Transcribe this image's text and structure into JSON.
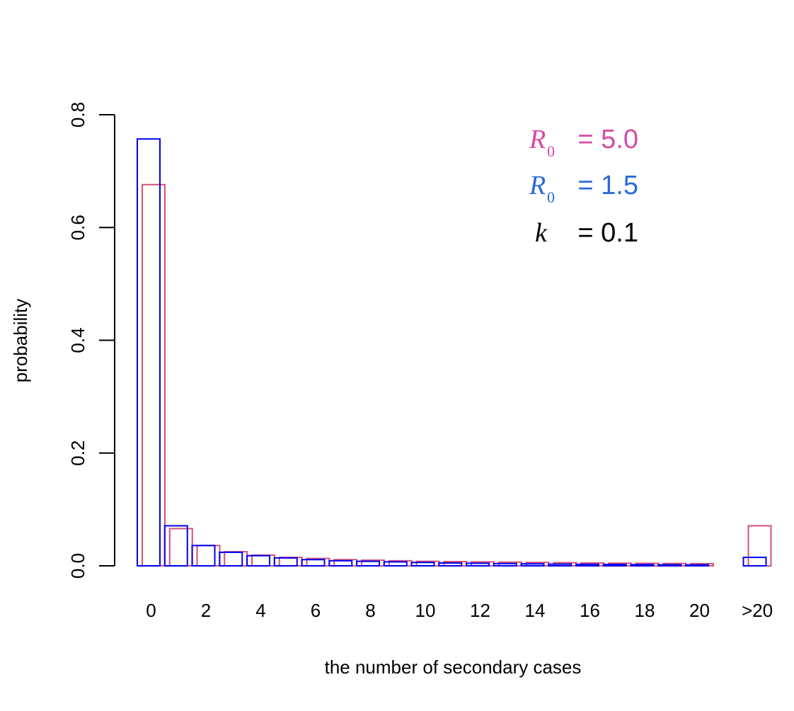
{
  "chart_data": {
    "type": "bar",
    "title": "",
    "xlabel": "the number of secondary cases",
    "ylabel": "probability",
    "ylim": [
      0,
      0.8
    ],
    "yticks": [
      "0.0",
      "0.2",
      "0.4",
      "0.6",
      "0.8"
    ],
    "categories": [
      "0",
      "1",
      "2",
      "3",
      "4",
      "5",
      "6",
      "7",
      "8",
      "9",
      "10",
      "11",
      "12",
      "13",
      "14",
      "15",
      "16",
      "17",
      "18",
      "19",
      "20",
      ">20"
    ],
    "xtick_labels": [
      "0",
      "2",
      "4",
      "6",
      "8",
      "10",
      "12",
      "14",
      "16",
      "18",
      "20",
      ">20"
    ],
    "grid": false,
    "series": [
      {
        "color": "#0000ee",
        "values": [
          0.757,
          0.071,
          0.036,
          0.024,
          0.018,
          0.014,
          0.011,
          0.009,
          0.008,
          0.007,
          0.006,
          0.005,
          0.0045,
          0.004,
          0.0035,
          0.003,
          0.0027,
          0.0024,
          0.0021,
          0.0019,
          0.0017,
          0.015
        ]
      },
      {
        "color": "#d4507a",
        "values": [
          0.676,
          0.066,
          0.036,
          0.025,
          0.019,
          0.015,
          0.013,
          0.011,
          0.01,
          0.009,
          0.008,
          0.0075,
          0.007,
          0.0065,
          0.006,
          0.0055,
          0.005,
          0.0047,
          0.0044,
          0.0041,
          0.0038,
          0.071
        ]
      }
    ],
    "legend": {
      "placement": "top-right",
      "items": [
        {
          "symbol": "R",
          "subscript": "0",
          "text": "= 5.0",
          "color": "#d54aa8"
        },
        {
          "symbol": "R",
          "subscript": "0",
          "text": "= 1.5",
          "color": "#2a6ad8"
        },
        {
          "symbol": "k",
          "subscript": "",
          "text": "= 0.1",
          "color": "#000000"
        }
      ]
    }
  }
}
